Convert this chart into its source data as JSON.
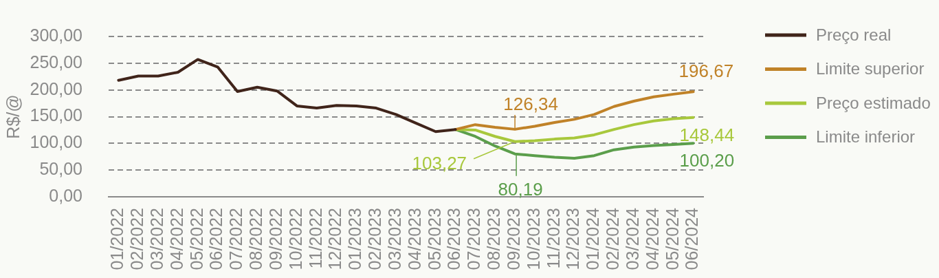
{
  "chart_data": {
    "type": "line",
    "categories": [
      "01/2022",
      "02/2022",
      "03/2022",
      "04/2022",
      "05/2022",
      "06/2022",
      "07/2022",
      "08/2022",
      "09/2022",
      "10/2022",
      "11/2022",
      "12/2022",
      "01/2023",
      "02/2023",
      "03/2023",
      "04/2023",
      "05/2023",
      "06/2023",
      "07/2023",
      "08/2023",
      "09/2023",
      "10/2023",
      "11/2023",
      "12/2023",
      "01/2024",
      "02/2024",
      "03/2024",
      "04/2024",
      "05/2024",
      "06/2024"
    ],
    "ylabel": "R$/@",
    "ylim": [
      0,
      300
    ],
    "yticks": [
      {
        "value": 0,
        "label": "0,00"
      },
      {
        "value": 50,
        "label": "50,00"
      },
      {
        "value": 100,
        "label": "100,00"
      },
      {
        "value": 150,
        "label": "150,00"
      },
      {
        "value": 200,
        "label": "200,00"
      },
      {
        "value": 250,
        "label": "250,00"
      },
      {
        "value": 300,
        "label": "300,00"
      }
    ],
    "grid": "y",
    "legend": "top right",
    "marker": "none",
    "series": [
      {
        "name": "Preço real",
        "color": "#40241a",
        "values": [
          218,
          226,
          226,
          233,
          257,
          243,
          197,
          205,
          198,
          170,
          166,
          171,
          170,
          166,
          154,
          138,
          122,
          126,
          null,
          null,
          null,
          null,
          null,
          null,
          null,
          null,
          null,
          null,
          null,
          null
        ]
      },
      {
        "name": "Limite superior",
        "color": "#c08228",
        "values": [
          null,
          null,
          null,
          null,
          null,
          null,
          null,
          null,
          null,
          null,
          null,
          null,
          null,
          null,
          null,
          null,
          null,
          126,
          135,
          130,
          126.34,
          132,
          139,
          145,
          154,
          169,
          179,
          187,
          192,
          196.67
        ],
        "value_labels": [
          null,
          null,
          null,
          null,
          null,
          null,
          null,
          null,
          null,
          null,
          null,
          null,
          null,
          null,
          null,
          null,
          null,
          null,
          null,
          null,
          "126,34",
          null,
          null,
          null,
          null,
          null,
          null,
          null,
          null,
          "196,67"
        ]
      },
      {
        "name": "Preço estimado",
        "color": "#a8c83c",
        "values": [
          null,
          null,
          null,
          null,
          null,
          null,
          null,
          null,
          null,
          null,
          null,
          null,
          null,
          null,
          null,
          null,
          null,
          126,
          125,
          113,
          103.27,
          105,
          108,
          110,
          116,
          126,
          135,
          142,
          146,
          148.44
        ],
        "value_labels": [
          null,
          null,
          null,
          null,
          null,
          null,
          null,
          null,
          null,
          null,
          null,
          null,
          null,
          null,
          null,
          null,
          null,
          null,
          null,
          null,
          "103,27",
          null,
          null,
          null,
          null,
          null,
          null,
          null,
          null,
          "148,44"
        ]
      },
      {
        "name": "Limite inferior",
        "color": "#5b9e4b",
        "values": [
          null,
          null,
          null,
          null,
          null,
          null,
          null,
          null,
          null,
          null,
          null,
          null,
          null,
          null,
          null,
          null,
          null,
          126,
          113,
          95,
          80.19,
          77,
          74,
          72,
          77,
          88,
          93,
          96,
          98,
          100.2
        ],
        "value_labels": [
          null,
          null,
          null,
          null,
          null,
          null,
          null,
          null,
          null,
          null,
          null,
          null,
          null,
          null,
          null,
          null,
          null,
          null,
          null,
          null,
          "80,19",
          null,
          null,
          null,
          null,
          null,
          null,
          null,
          null,
          "100,20"
        ]
      }
    ]
  }
}
